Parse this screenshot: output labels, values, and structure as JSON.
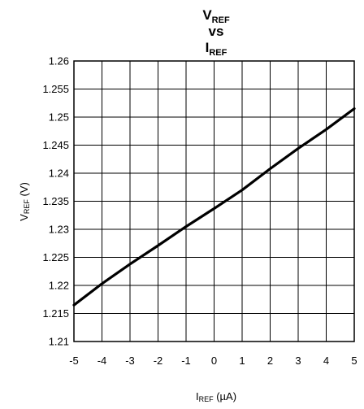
{
  "chart_data": {
    "type": "line",
    "title": {
      "line1_main": "V",
      "line1_sub": "REF",
      "line2": "vs",
      "line3_main": "I",
      "line3_sub": "REF"
    },
    "xlabel": {
      "main": "I",
      "sub": "REF",
      "unit": " (µA)"
    },
    "ylabel": {
      "main": "V",
      "sub": "REF",
      "unit": " (V)"
    },
    "xlim": [
      -5,
      5
    ],
    "ylim": [
      1.21,
      1.26
    ],
    "x_ticks": [
      "-5",
      "-4",
      "-3",
      "-2",
      "-1",
      "0",
      "1",
      "2",
      "3",
      "4",
      "5"
    ],
    "y_ticks": [
      "1.26",
      "1.255",
      "1.25",
      "1.245",
      "1.24",
      "1.235",
      "1.23",
      "1.225",
      "1.22",
      "1.215",
      "1.21"
    ],
    "grid": true,
    "series": [
      {
        "x": [
          -5,
          -4,
          -3,
          -2,
          -1,
          0,
          1,
          2,
          3,
          4,
          5
        ],
        "y": [
          1.2165,
          1.2203,
          1.2238,
          1.2271,
          1.2305,
          1.2337,
          1.237,
          1.2408,
          1.2444,
          1.2478,
          1.2515
        ]
      }
    ]
  }
}
